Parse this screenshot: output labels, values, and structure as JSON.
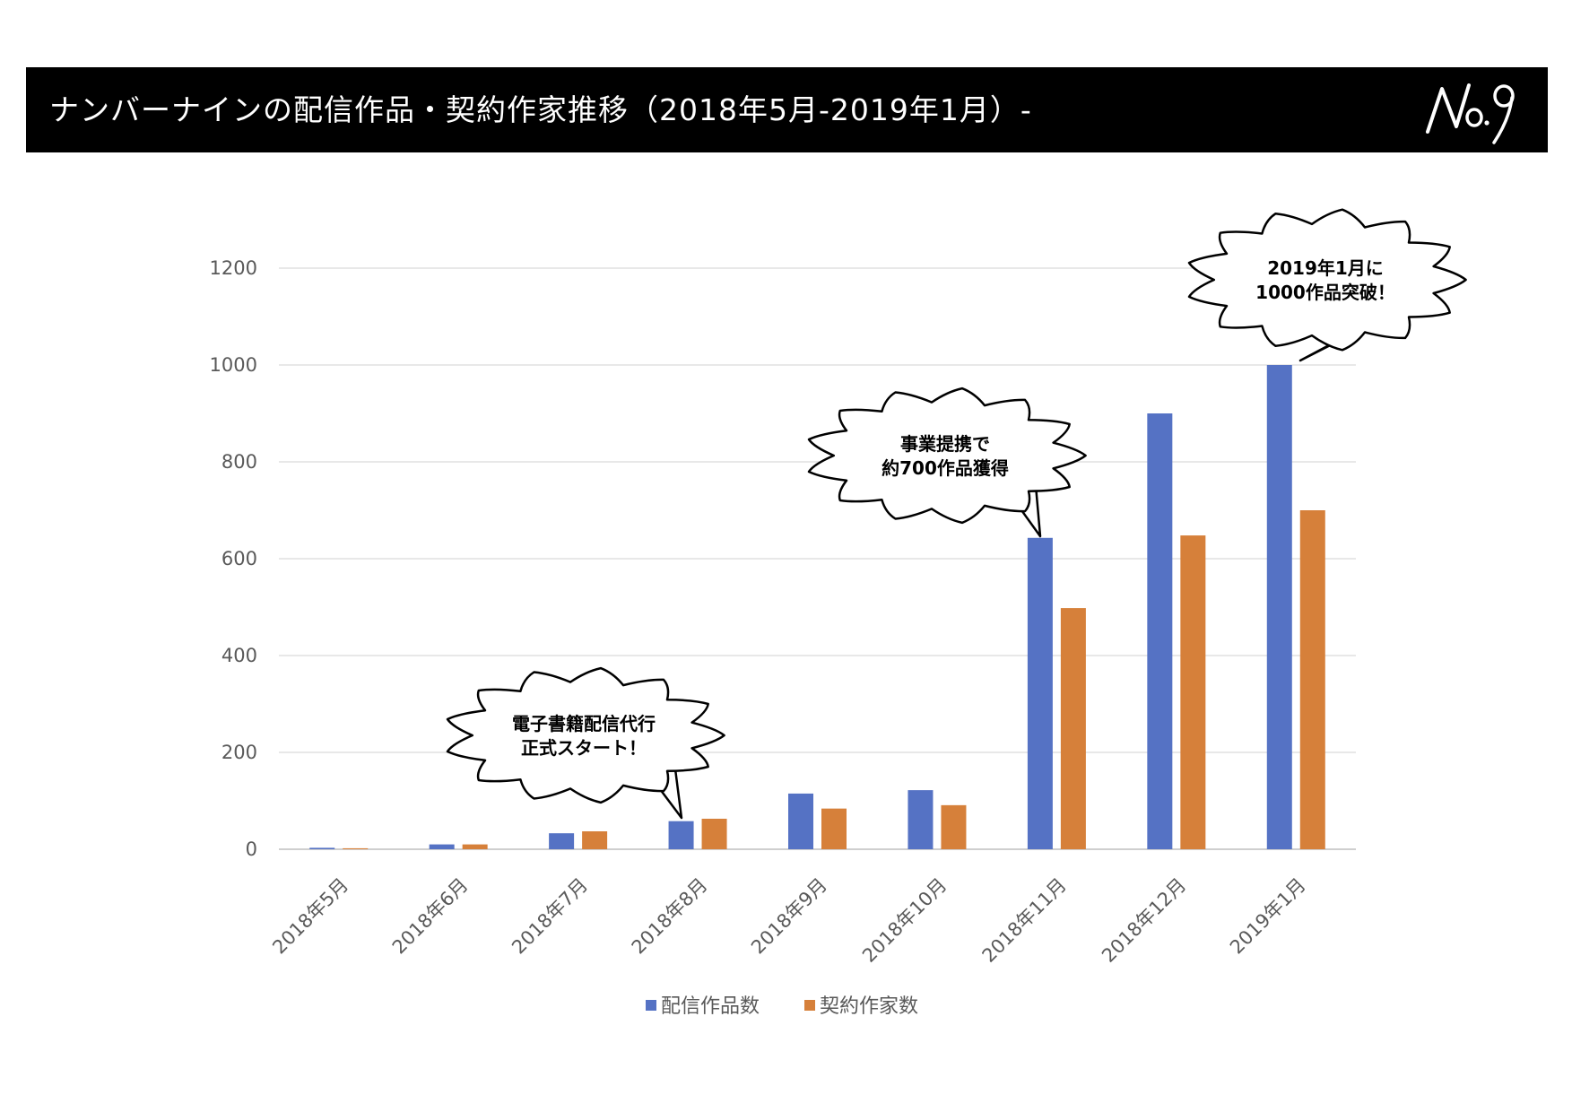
{
  "header": {
    "title": "ナンバーナインの配信作品・契約作家推移（2018年5月-2019年1月）-",
    "logo_text": "No.9"
  },
  "colors": {
    "header_bg": "#000000",
    "series_1": "#5572C4",
    "series_2": "#D6803A",
    "grid": "#D9D9D9"
  },
  "chart_data": {
    "type": "bar",
    "categories": [
      "2018年5月",
      "2018年6月",
      "2018年7月",
      "2018年8月",
      "2018年9月",
      "2018年10月",
      "2018年11月",
      "2018年12月",
      "2019年1月"
    ],
    "series": [
      {
        "name": "配信作品数",
        "values": [
          3,
          10,
          33,
          58,
          115,
          122,
          643,
          900,
          1000
        ]
      },
      {
        "name": "契約作家数",
        "values": [
          2,
          10,
          37,
          63,
          84,
          91,
          498,
          648,
          700
        ]
      }
    ],
    "y_ticks": [
      0,
      200,
      400,
      600,
      800,
      1000,
      1200
    ],
    "ylim": [
      0,
      1200
    ],
    "grid": true,
    "legend_position": "bottom",
    "annotations": [
      {
        "lines": [
          "電子書籍配信代行",
          "正式スタート！"
        ],
        "category": "2018年7月"
      },
      {
        "lines": [
          "事業提携で",
          "約700作品獲得"
        ],
        "category": "2018年11月"
      },
      {
        "lines": [
          "2019年1月に",
          "1000作品突破！"
        ],
        "category": "2019年1月"
      }
    ]
  }
}
